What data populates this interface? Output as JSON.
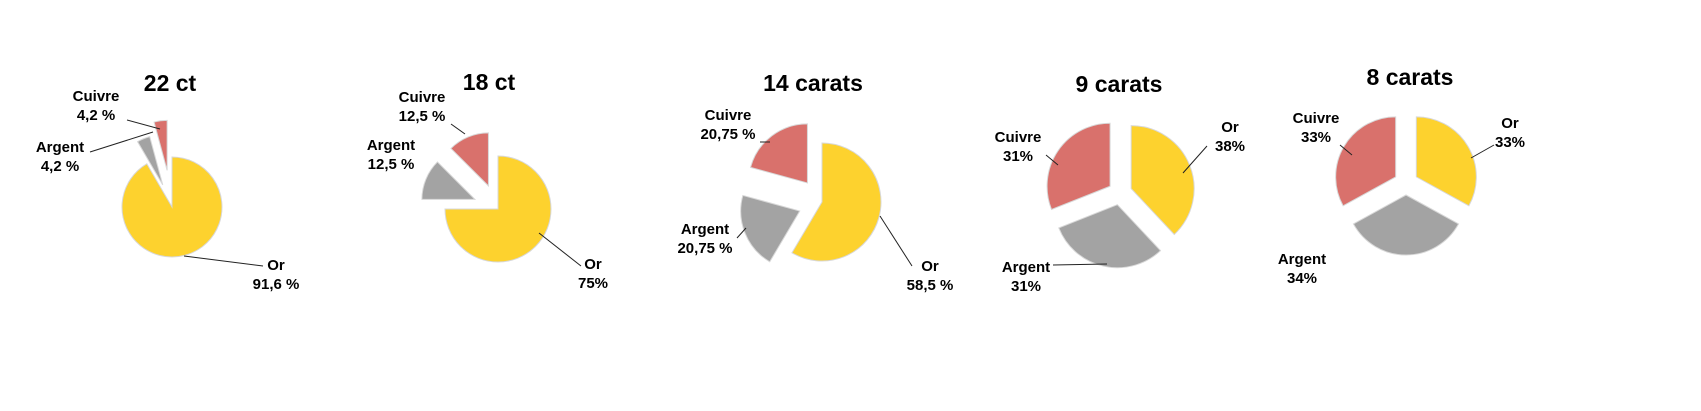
{
  "colors": {
    "Or": "#FDD22E",
    "Argent": "#A3A3A3",
    "Cuivre": "#D9716C"
  },
  "chart_data": [
    {
      "type": "pie",
      "title": "22 ct",
      "slices": [
        {
          "name": "Or",
          "value": 91.6,
          "name_label": "Or",
          "value_label": "91,6 %"
        },
        {
          "name": "Argent",
          "value": 4.2,
          "name_label": "Argent",
          "value_label": "4,2 %"
        },
        {
          "name": "Cuivre",
          "value": 4.2,
          "name_label": "Cuivre",
          "value_label": "4,2 %"
        }
      ]
    },
    {
      "type": "pie",
      "title": "18 ct",
      "slices": [
        {
          "name": "Or",
          "value": 75,
          "name_label": "Or",
          "value_label": "75%"
        },
        {
          "name": "Argent",
          "value": 12.5,
          "name_label": "Argent",
          "value_label": "12,5 %"
        },
        {
          "name": "Cuivre",
          "value": 12.5,
          "name_label": "Cuivre",
          "value_label": "12,5 %"
        }
      ]
    },
    {
      "type": "pie",
      "title": "14 carats",
      "slices": [
        {
          "name": "Or",
          "value": 58.5,
          "name_label": "Or",
          "value_label": "58,5 %"
        },
        {
          "name": "Argent",
          "value": 20.75,
          "name_label": "Argent",
          "value_label": "20,75 %"
        },
        {
          "name": "Cuivre",
          "value": 20.75,
          "name_label": "Cuivre",
          "value_label": "20,75 %"
        }
      ]
    },
    {
      "type": "pie",
      "title": "9 carats",
      "slices": [
        {
          "name": "Or",
          "value": 38,
          "name_label": "Or",
          "value_label": "38%"
        },
        {
          "name": "Argent",
          "value": 31,
          "name_label": "Argent",
          "value_label": "31%"
        },
        {
          "name": "Cuivre",
          "value": 31,
          "name_label": "Cuivre",
          "value_label": "31%"
        }
      ]
    },
    {
      "type": "pie",
      "title": "8 carats",
      "slices": [
        {
          "name": "Or",
          "value": 33,
          "name_label": "Or",
          "value_label": "33%"
        },
        {
          "name": "Argent",
          "value": 34,
          "name_label": "Argent",
          "value_label": "34%"
        },
        {
          "name": "Cuivre",
          "value": 33,
          "name_label": "Cuivre",
          "value_label": "33%"
        }
      ]
    }
  ]
}
